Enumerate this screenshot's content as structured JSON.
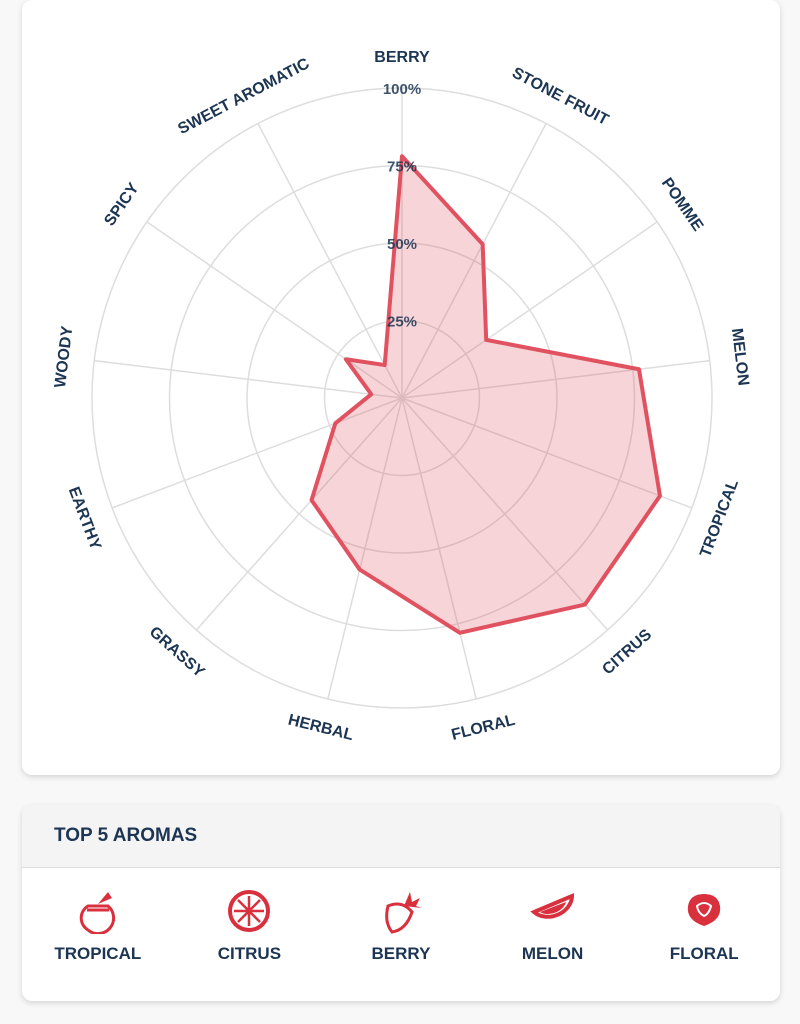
{
  "chart_data": {
    "type": "radar",
    "categories": [
      "BERRY",
      "STONE FRUIT",
      "POMME",
      "MELON",
      "TROPICAL",
      "CITRUS",
      "FLORAL",
      "HERBAL",
      "GRASSY",
      "EARTHY",
      "WOODY",
      "SPICY",
      "SWEET AROMATIC"
    ],
    "values": [
      78,
      56,
      33,
      77,
      89,
      89,
      78,
      57,
      44,
      23,
      10,
      22,
      12
    ],
    "color": "#e05260",
    "rlim": [
      0,
      100
    ],
    "rticks": [
      {
        "value": 25,
        "label": "25%"
      },
      {
        "value": 50,
        "label": "50%"
      },
      {
        "value": 75,
        "label": "75%"
      },
      {
        "value": 100,
        "label": "100%"
      }
    ],
    "grid": true
  },
  "top_aromas": {
    "title": "TOP 5 AROMAS",
    "items": [
      "TROPICAL",
      "CITRUS",
      "BERRY",
      "MELON",
      "FLORAL"
    ]
  }
}
